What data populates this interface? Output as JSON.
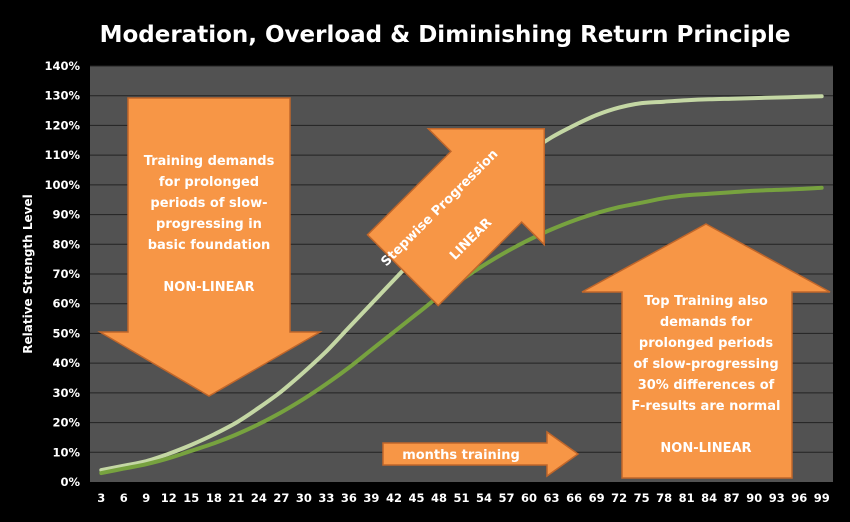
{
  "chart_data": {
    "type": "line",
    "title": "Moderation, Overload & Diminishing Return Principle",
    "ylabel": "Relative Strength Level",
    "xlabel": "",
    "ylim": [
      0,
      140
    ],
    "yticks": [
      "0%",
      "10%",
      "20%",
      "30%",
      "40%",
      "50%",
      "60%",
      "70%",
      "80%",
      "90%",
      "100%",
      "110%",
      "120%",
      "130%",
      "140%"
    ],
    "x": [
      3,
      6,
      9,
      12,
      15,
      18,
      21,
      24,
      27,
      30,
      33,
      36,
      39,
      42,
      45,
      48,
      51,
      54,
      57,
      60,
      63,
      66,
      69,
      72,
      75,
      78,
      81,
      84,
      87,
      90,
      93,
      96,
      99
    ],
    "grid": true,
    "legend": "none",
    "series": [
      {
        "color": "#c4d7a4",
        "values": [
          4,
          5.5,
          7,
          9.5,
          12.5,
          16,
          20,
          25,
          30.5,
          37,
          44,
          52,
          60,
          68,
          76,
          84,
          92,
          99,
          105,
          111,
          116,
          120,
          123.5,
          126,
          127.5,
          128,
          128.5,
          128.8,
          129,
          129.2,
          129.4,
          129.6,
          129.8
        ]
      },
      {
        "color": "#77a23f",
        "values": [
          3,
          4.5,
          6,
          8,
          10.5,
          13,
          16,
          19.5,
          23.5,
          28,
          33,
          38.5,
          44.5,
          50.5,
          56.5,
          62.5,
          68,
          73,
          77.5,
          81.5,
          85,
          88,
          90.5,
          92.5,
          94,
          95.5,
          96.5,
          97,
          97.5,
          98,
          98.3,
          98.6,
          99
        ]
      }
    ],
    "annotations": {
      "down_arrow": [
        "Training demands",
        "for  prolonged",
        "periods of slow-",
        "progressing in",
        "basic foundation",
        "",
        "NON-LINEAR"
      ],
      "diagonal_arrow": [
        "Stepwise Progression",
        "",
        "LINEAR"
      ],
      "up_arrow": [
        "Top Training also",
        "demands for",
        "prolonged  periods",
        "of slow-progressing",
        "30% differences of",
        "F-results are normal",
        "",
        "NON-LINEAR"
      ],
      "right_arrow": [
        "months training"
      ]
    },
    "colors": {
      "background": "#000000",
      "plot_area": "#525252",
      "gridline": "#222222",
      "arrow_fill": "#f79646",
      "arrow_stroke": "#c0662a"
    }
  }
}
